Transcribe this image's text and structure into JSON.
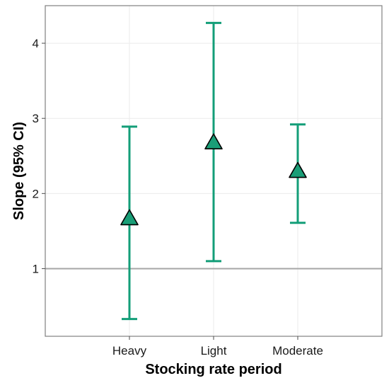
{
  "chart_data": {
    "type": "scatter",
    "subtype": "point-with-errorbars",
    "title": "",
    "xlabel": "Stocking rate period",
    "ylabel": "Slope (95% CI)",
    "categories": [
      "Heavy",
      "Light",
      "Moderate"
    ],
    "series": [
      {
        "values": [
          1.66,
          2.67,
          2.29
        ],
        "lower": [
          0.33,
          1.1,
          1.61
        ],
        "upper": [
          2.89,
          4.27,
          2.92
        ]
      }
    ],
    "ylim": [
      0.1,
      4.5
    ],
    "yticks": [
      1,
      2,
      3,
      4
    ],
    "reference_line": 1,
    "grid": true,
    "legend": "none",
    "colors": {
      "errorbar": "#139E78",
      "marker_fill": "#1A9E77",
      "marker_edge": "#000000",
      "reference_line": "#A6A6A6"
    },
    "marker": "triangle"
  }
}
